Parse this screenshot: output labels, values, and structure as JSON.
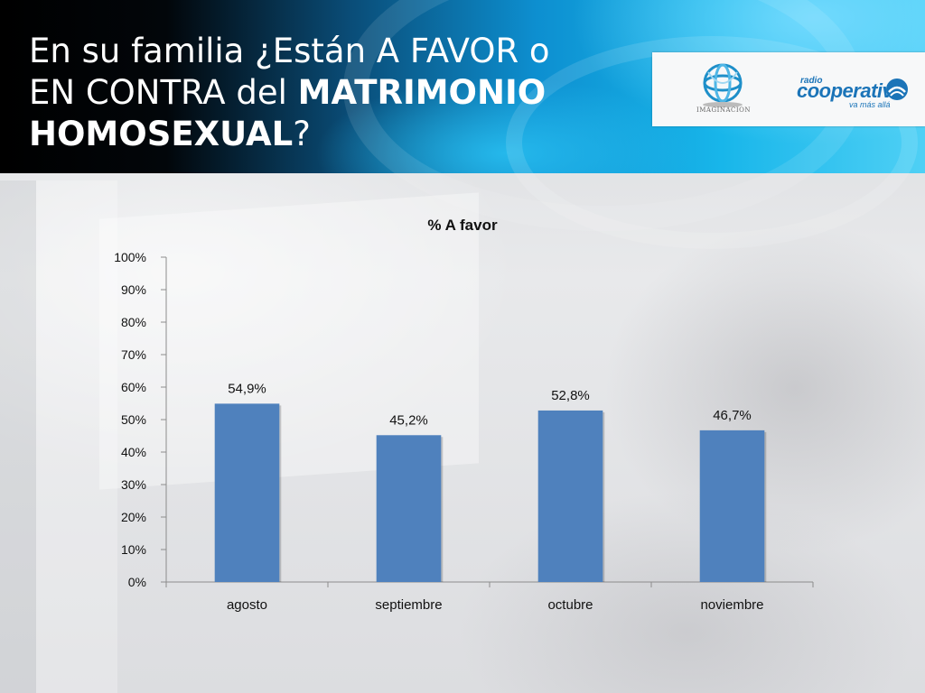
{
  "slide": {
    "title_line1": "En su familia ¿Están A FAVOR o",
    "title_line2_normal": "EN CONTRA del ",
    "title_line2_bold": "MATRIMONIO",
    "title_line3_bold": "HOMOSEXUAL",
    "title_line3_end": "?"
  },
  "logos": {
    "imaginacion_text": "IMAGINACION",
    "cooperativa_small": "radio",
    "cooperativa_main": "cooperativa",
    "cooperativa_tag": "va más allá",
    "brand_color": "#1b74b8"
  },
  "chart_data": {
    "type": "bar",
    "title": "% A favor",
    "categories": [
      "agosto",
      "septiembre",
      "octubre",
      "noviembre"
    ],
    "values": [
      54.9,
      45.2,
      52.8,
      46.7
    ],
    "value_labels": [
      "54,9%",
      "45,2%",
      "52,8%",
      "46,7%"
    ],
    "yticks": [
      "0%",
      "10%",
      "20%",
      "30%",
      "40%",
      "50%",
      "60%",
      "70%",
      "80%",
      "90%",
      "100%"
    ],
    "ylim": [
      0,
      100
    ],
    "bar_color": "#4f81bd",
    "grid": false,
    "legend": false
  }
}
